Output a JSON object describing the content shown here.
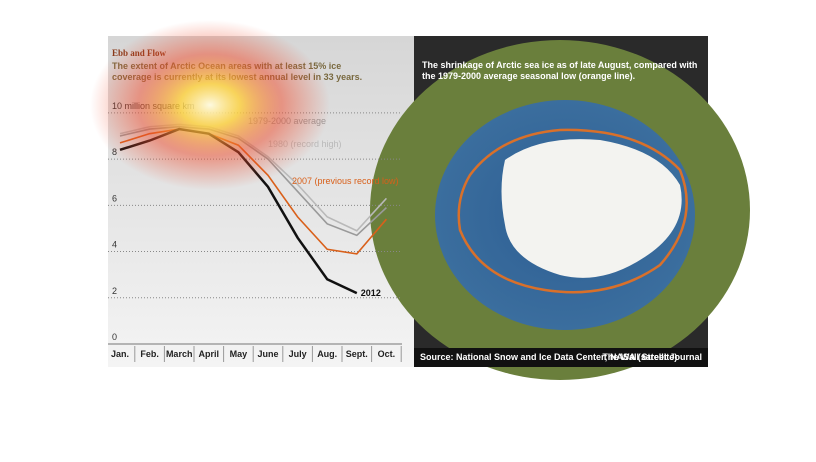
{
  "chart_data": {
    "type": "line",
    "title": "Ebb and Flow",
    "subtitle": "The extent of Arctic Ocean areas with at least 15% ice coverage is currently at its lowest annual level in 33 years.",
    "categories": [
      "Jan.",
      "Feb.",
      "March",
      "April",
      "May",
      "June",
      "July",
      "Aug.",
      "Sept.",
      "Oct."
    ],
    "series": [
      {
        "name": "1979-2000 average",
        "color": "#9a9a9a",
        "values": [
          9.0,
          9.3,
          9.4,
          9.3,
          8.9,
          8.0,
          6.6,
          5.2,
          4.7,
          5.9
        ]
      },
      {
        "name": "1980 (record high)",
        "color": "#b9b9b9",
        "values": [
          9.1,
          9.4,
          9.5,
          9.4,
          9.0,
          8.1,
          6.9,
          5.5,
          4.9,
          6.3
        ]
      },
      {
        "name": "2007 (previous record low)",
        "color": "#d9601a",
        "values": [
          8.7,
          9.1,
          9.3,
          9.1,
          8.6,
          7.3,
          5.5,
          4.1,
          3.9,
          5.4
        ]
      },
      {
        "name": "2012",
        "color": "#111111",
        "values": [
          8.4,
          8.8,
          9.3,
          9.1,
          8.3,
          6.8,
          4.6,
          2.8,
          2.2,
          null
        ]
      }
    ],
    "ylim": [
      0,
      10.6
    ],
    "yticks": [
      0,
      2,
      4,
      6,
      8,
      {
        "value": 10,
        "label": "10 million square km"
      }
    ],
    "grid": true
  },
  "map_panel": {
    "caption": "The shrinkage of Arctic sea ice as of late August, compared with the 1979-2000 average seasonal low (orange line).",
    "source": "Source: National Snow and Ice Data Center; NASA (satellite)",
    "credit": "The Wall Street Journal"
  }
}
